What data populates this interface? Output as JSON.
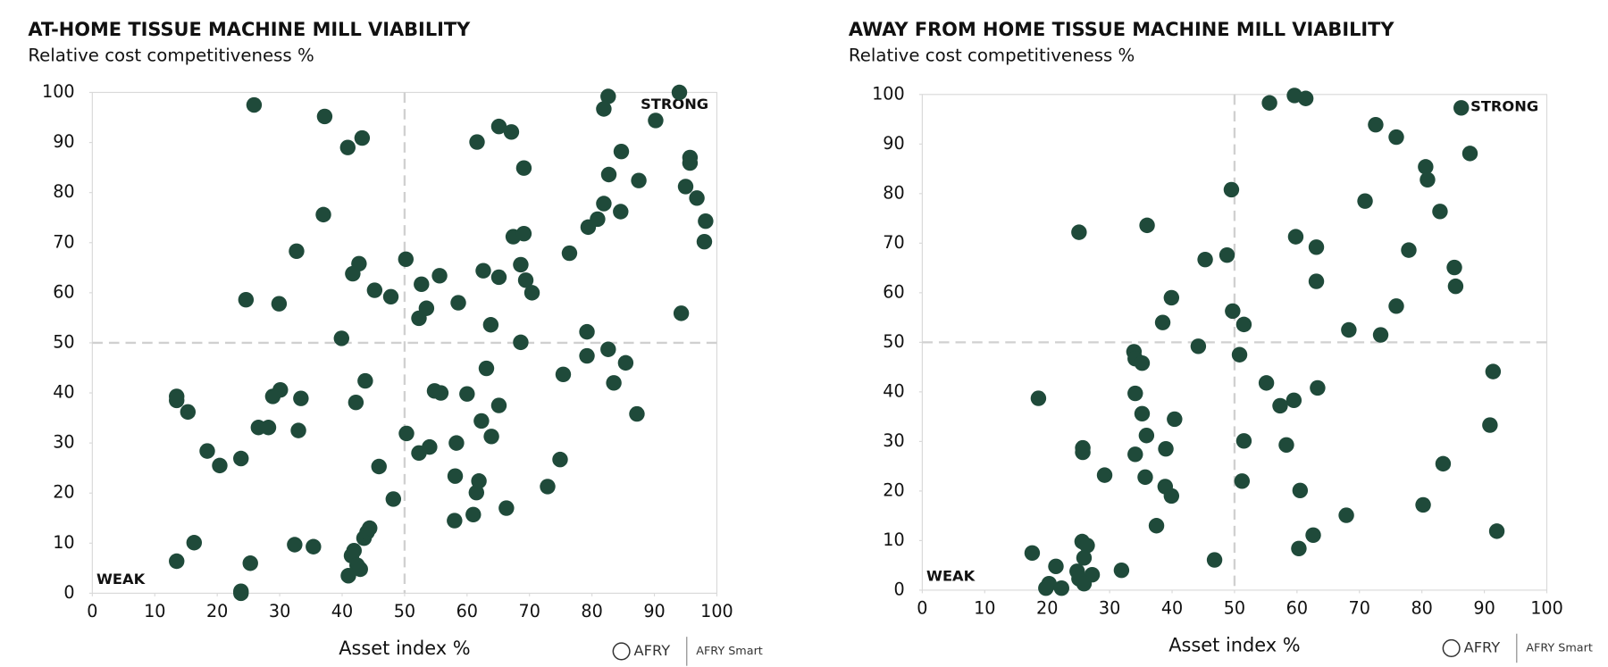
{
  "chart_data": [
    {
      "type": "scatter",
      "title": "AT-HOME TISSUE MACHINE MILL VIABILITY",
      "subtitle": "Relative cost competitiveness %",
      "x_label": "Asset index %",
      "annotations": [
        "STRONG",
        "WEAK"
      ],
      "logo": "AFRY",
      "logo_sub": "AFRY Smart",
      "color": "#1f4a3a",
      "xlim": [
        0,
        100
      ],
      "ylim": [
        0,
        100
      ],
      "xticks": [
        0,
        10,
        20,
        30,
        40,
        50,
        60,
        70,
        80,
        90,
        100
      ],
      "yticks": [
        0,
        10,
        20,
        30,
        40,
        50,
        60,
        70,
        80,
        90,
        100
      ],
      "reference_lines": {
        "x": 50,
        "y": 50
      },
      "x": [
        25.9,
        37.2,
        43.2,
        40.9,
        37,
        32.7,
        42.7,
        41.7,
        24.6,
        29.9,
        45.2,
        47.8,
        39.9,
        50.2,
        52.7,
        55.6,
        53.5,
        52.3,
        58.6,
        61.6,
        65.1,
        67.1,
        69.1,
        62.6,
        65.1,
        63.8,
        67.4,
        69.1,
        68.6,
        69.4,
        70.4,
        68.6,
        82.6,
        81.9,
        94,
        90.2,
        84.7,
        95.7,
        95.7,
        82.7,
        87.5,
        95,
        96.8,
        81.9,
        84.6,
        80.9,
        79.4,
        98.2,
        98,
        76.4,
        94.3,
        79.2,
        82.6,
        79.2,
        85.4,
        75.4,
        83.5,
        87.2,
        74.9,
        72.9,
        13.5,
        13.5,
        15.3,
        18.4,
        20.4,
        23.8,
        26.6,
        28.2,
        28.9,
        30.1,
        33.4,
        33,
        43.7,
        42.2,
        13.5,
        16.3,
        25.3,
        23.8,
        23.8,
        32.4,
        35.4,
        41,
        41.5,
        41.9,
        42.4,
        42.9,
        43.5,
        44,
        44.4,
        45.9,
        48.2,
        50.3,
        52.3,
        54,
        54.8,
        55.8,
        60,
        58.3,
        58.1,
        61,
        61.5,
        61.9,
        62.3,
        63.1,
        63.9,
        65.1,
        66.3,
        58
      ],
      "values": [
        97.5,
        95.2,
        90.9,
        89,
        75.6,
        68.3,
        65.8,
        63.8,
        58.6,
        57.8,
        60.5,
        59.2,
        50.9,
        66.7,
        61.7,
        63.4,
        56.9,
        54.9,
        58,
        90.1,
        93.2,
        92.1,
        84.9,
        64.4,
        63.1,
        53.6,
        71.2,
        71.8,
        65.6,
        62.5,
        60,
        50.1,
        99.2,
        96.7,
        100,
        94.4,
        88.2,
        87,
        85.9,
        83.6,
        82.4,
        81.2,
        78.9,
        77.8,
        76.2,
        74.7,
        73.1,
        74.3,
        70.2,
        67.9,
        55.9,
        52.2,
        48.7,
        47.4,
        46,
        43.7,
        42,
        35.8,
        26.7,
        21.3,
        39.3,
        38.5,
        36.2,
        28.4,
        25.5,
        26.9,
        33.1,
        33.1,
        39.3,
        40.6,
        38.9,
        32.5,
        42.4,
        38.1,
        6.4,
        10.1,
        6,
        0.4,
        0,
        9.7,
        9.3,
        3.5,
        7.5,
        8.5,
        5.6,
        4.8,
        11,
        12.2,
        13,
        25.3,
        18.8,
        31.9,
        28,
        29.2,
        40.4,
        40,
        39.8,
        30,
        23.4,
        15.7,
        20.1,
        22.4,
        34.4,
        44.9,
        31.3,
        37.5,
        17,
        14.5
      ]
    },
    {
      "type": "scatter",
      "title": "AWAY FROM HOME TISSUE MACHINE MILL VIABILITY",
      "subtitle": "Relative cost competitiveness %",
      "x_label": "Asset index %",
      "annotations": [
        "STRONG",
        "WEAK"
      ],
      "logo": "AFRY",
      "logo_sub": "AFRY Smart",
      "color": "#1f4a3a",
      "xlim": [
        0,
        100
      ],
      "ylim": [
        0,
        100
      ],
      "xticks": [
        0,
        10,
        20,
        30,
        40,
        50,
        60,
        70,
        80,
        90,
        100
      ],
      "yticks": [
        0,
        10,
        20,
        30,
        40,
        50,
        60,
        70,
        80,
        90,
        100
      ],
      "reference_lines": {
        "x": 50,
        "y": 50
      },
      "x": [
        59.6,
        61.4,
        55.6,
        86.3,
        72.6,
        75.9,
        87.7,
        80.6,
        80.9,
        49.5,
        70.9,
        82.9,
        36,
        25.1,
        59.8,
        63.1,
        77.9,
        45.3,
        48.8,
        85.2,
        63.1,
        85.4,
        39.9,
        75.9,
        49.7,
        38.5,
        51.5,
        68.3,
        73.4,
        44.2,
        33.9,
        50.8,
        34.1,
        35.2,
        91.4,
        55.1,
        63.3,
        18.6,
        34.1,
        59.5,
        57.3,
        35.2,
        40.4,
        90.9,
        35.9,
        51.5,
        58.3,
        25.7,
        25.7,
        34.1,
        39,
        83.4,
        29.2,
        35.7,
        51.2,
        38.9,
        60.5,
        39.9,
        67.9,
        80.2,
        37.5,
        92,
        62.6,
        25.6,
        26.4,
        60.3,
        17.6,
        25.9,
        46.8,
        21.4,
        31.9,
        24.8,
        27.2,
        25.1,
        20.3,
        25.9,
        22.3,
        19.8
      ],
      "values": [
        99.8,
        99.2,
        98.3,
        97.3,
        93.9,
        91.4,
        88.1,
        85.4,
        82.8,
        80.8,
        78.5,
        76.4,
        73.6,
        72.2,
        71.3,
        69.2,
        68.6,
        66.7,
        67.6,
        65.1,
        62.3,
        61.3,
        59,
        57.3,
        56.3,
        54,
        53.6,
        52.5,
        51.5,
        49.2,
        48.1,
        47.5,
        46.7,
        45.8,
        44.1,
        41.8,
        40.8,
        38.7,
        39.7,
        38.3,
        37.2,
        35.6,
        34.5,
        33.3,
        31.2,
        30.1,
        29.3,
        28.7,
        27.8,
        27.4,
        28.5,
        25.5,
        23.2,
        22.8,
        22,
        20.9,
        20.1,
        19,
        15.1,
        17.2,
        13,
        11.9,
        11.1,
        9.8,
        9,
        8.4,
        7.5,
        6.5,
        6.1,
        4.8,
        4,
        3.8,
        3.1,
        2.3,
        1.3,
        1.3,
        0.4,
        0.4
      ]
    }
  ]
}
